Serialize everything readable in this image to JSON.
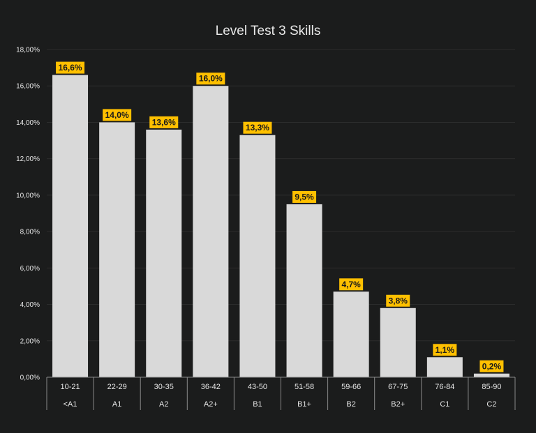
{
  "chart_data": {
    "type": "bar",
    "title": "Level Test 3 Skills",
    "categories": [
      "10-21",
      "22-29",
      "30-35",
      "36-42",
      "43-50",
      "51-58",
      "59-66",
      "67-75",
      "76-84",
      "85-90"
    ],
    "levels": [
      "<A1",
      "A1",
      "A2",
      "A2+",
      "B1",
      "B1+",
      "B2",
      "B2+",
      "C1",
      "C2"
    ],
    "values": [
      16.6,
      14.0,
      13.6,
      16.0,
      13.3,
      9.5,
      4.7,
      3.8,
      1.1,
      0.2
    ],
    "value_labels": [
      "16,6%",
      "14,0%",
      "13,6%",
      "16,0%",
      "13,3%",
      "9,5%",
      "4,7%",
      "3,8%",
      "1,1%",
      "0,2%"
    ],
    "ylim": [
      0,
      18
    ],
    "yticks": [
      0,
      2,
      4,
      6,
      8,
      10,
      12,
      14,
      16,
      18
    ],
    "ytick_labels": [
      "0,00%",
      "2,00%",
      "4,00%",
      "6,00%",
      "8,00%",
      "10,00%",
      "12,00%",
      "14,00%",
      "16,00%",
      "18,00%"
    ],
    "grid": true,
    "legend": "none",
    "colors": {
      "background": "#1b1c1c",
      "bar": "#d9d9d9",
      "label_box": "#ffc000",
      "grid": "#2c2d2d",
      "axis": "#8a8a8a",
      "text": "#e6e6e6"
    }
  }
}
